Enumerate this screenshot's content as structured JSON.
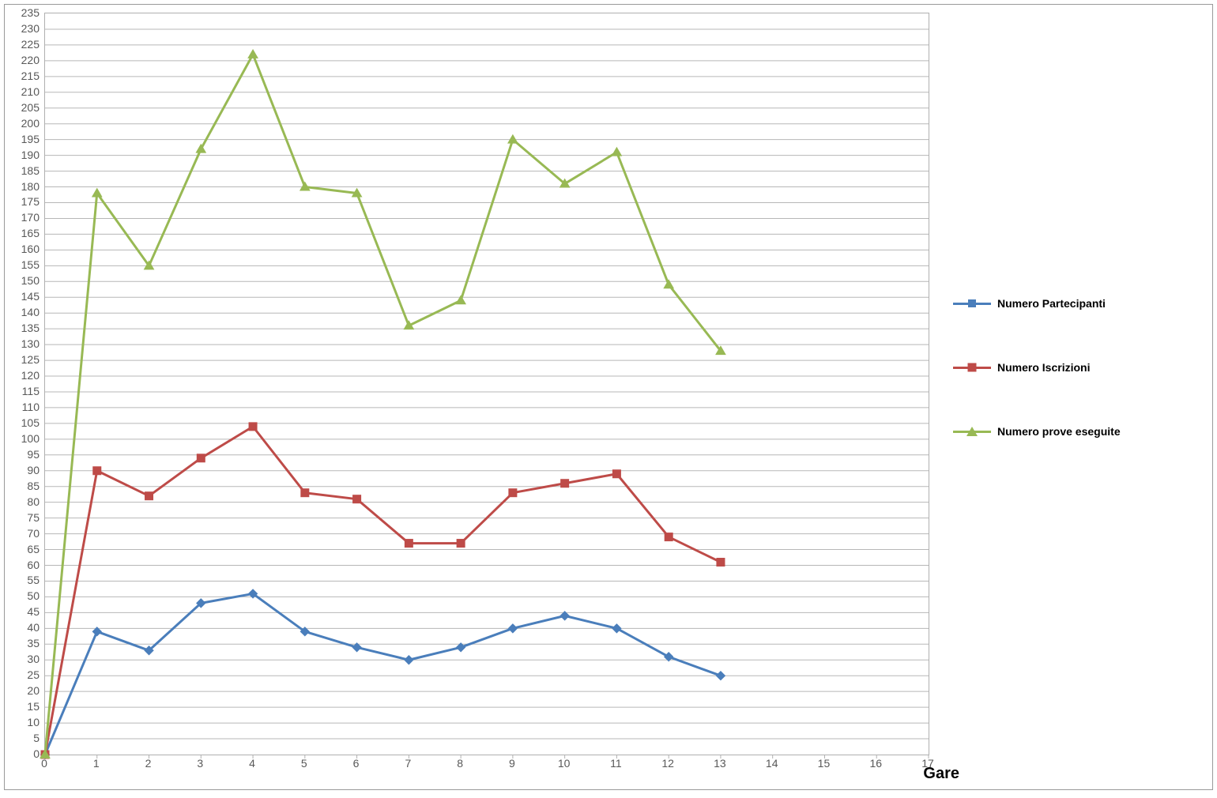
{
  "chart": {
    "type": "line",
    "background_color": "#ffffff",
    "border_color": "#9a9a9a",
    "plot_border_color": "#b0b0b0",
    "grid_color": "#b7b7b7",
    "tick_label_color": "#585858",
    "tick_fontsize": 14,
    "xlabel": "Gare",
    "xlabel_fontsize": 20,
    "xlabel_fontweight": "bold",
    "xlim": [
      0,
      17
    ],
    "xtick_step": 1,
    "ylim": [
      0,
      235
    ],
    "ytick_step": 5,
    "line_width": 3,
    "marker_size": 11,
    "series": [
      {
        "name": "Numero Partecipanti",
        "color": "#4a7ebb",
        "marker": "diamond",
        "x": [
          0,
          1,
          2,
          3,
          4,
          5,
          6,
          7,
          8,
          9,
          10,
          11,
          12,
          13
        ],
        "y": [
          0,
          39,
          33,
          48,
          51,
          39,
          34,
          30,
          34,
          40,
          44,
          40,
          31,
          25
        ]
      },
      {
        "name": "Numero Iscrizioni",
        "color": "#be4b48",
        "marker": "square",
        "x": [
          0,
          1,
          2,
          3,
          4,
          5,
          6,
          7,
          8,
          9,
          10,
          11,
          12,
          13
        ],
        "y": [
          0,
          90,
          82,
          94,
          104,
          83,
          81,
          67,
          67,
          83,
          86,
          89,
          69,
          61
        ]
      },
      {
        "name": "Numero prove eseguite",
        "color": "#98b954",
        "marker": "triangle",
        "x": [
          0,
          1,
          2,
          3,
          4,
          5,
          6,
          7,
          8,
          9,
          10,
          11,
          12,
          13
        ],
        "y": [
          0,
          178,
          155,
          192,
          222,
          180,
          178,
          136,
          144,
          195,
          181,
          191,
          149,
          128
        ]
      }
    ]
  }
}
